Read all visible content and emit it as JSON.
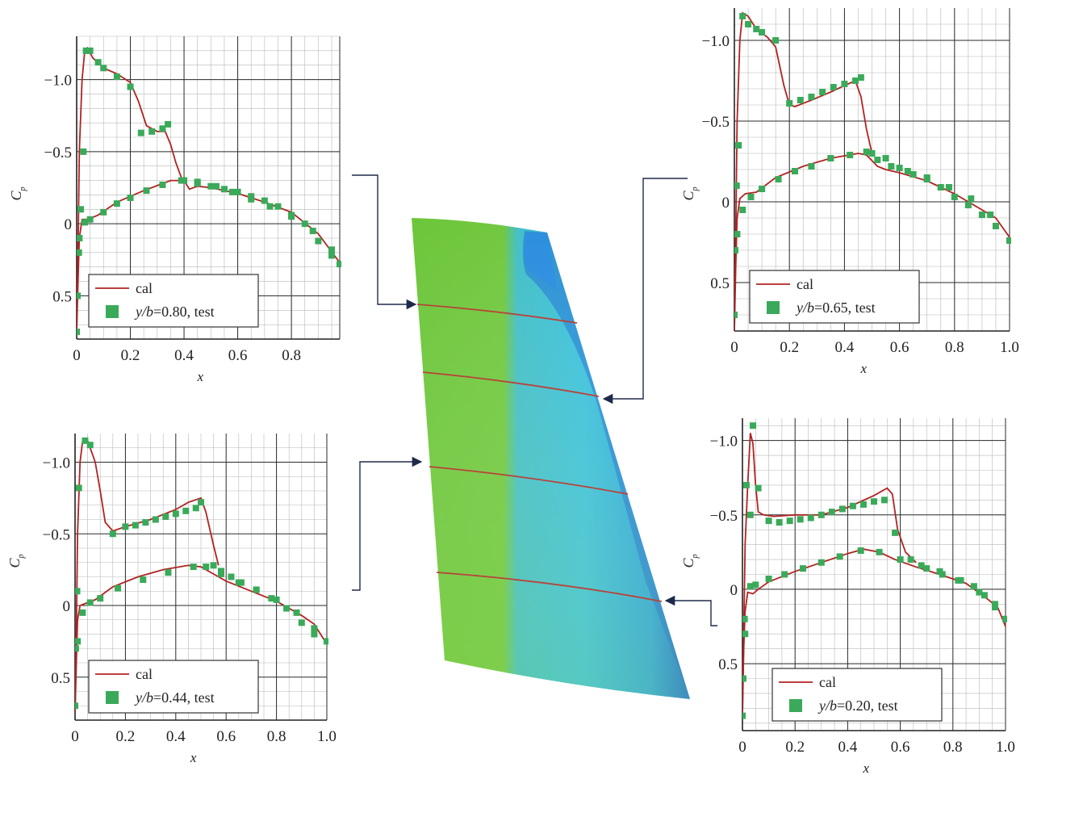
{
  "colors": {
    "cal": "#b22222",
    "test": "#3aaa5a",
    "wing_green": "#6cc63a",
    "wing_cyan": "#3dc3dc",
    "wing_blue": "#1f6fd6"
  },
  "chart_data": [
    {
      "type": "line",
      "xlabel": "x",
      "ylabel": "C_p",
      "ylabel_main": "C",
      "ylabel_sub": "p",
      "xlim": [
        0,
        0.98
      ],
      "ylim": [
        -1.3,
        0.8
      ],
      "y_inverted": true,
      "xticks": [
        0,
        0.2,
        0.4,
        0.6,
        0.8
      ],
      "xtick_labels": [
        "0",
        "0.2",
        "0.4",
        "0.6",
        "0.8"
      ],
      "yticks": [
        -1.0,
        -0.5,
        0,
        0.5
      ],
      "ytick_labels": [
        "−1.0",
        "−0.5",
        "0",
        "0.5"
      ],
      "legend": {
        "cal": "cal",
        "test_italic": "y/b",
        "test_rest": "=0.80, test"
      },
      "legend_position": "bottom-left",
      "series": [
        {
          "name": "cal",
          "kind": "line",
          "x": [
            0,
            0.005,
            0.01,
            0.02,
            0.03,
            0.04,
            0.06,
            0.1,
            0.15,
            0.2,
            0.23,
            0.26,
            0.3,
            0.33,
            0.35,
            0.37,
            0.39,
            0.41
          ],
          "y": [
            0.75,
            0.2,
            -0.5,
            -1.0,
            -1.2,
            -1.22,
            -1.15,
            -1.08,
            -1.04,
            -0.98,
            -0.85,
            -0.68,
            -0.64,
            -0.64,
            -0.55,
            -0.42,
            -0.32,
            -0.29
          ]
        },
        {
          "name": "cal",
          "kind": "line",
          "x": [
            0,
            0.005,
            0.01,
            0.02,
            0.04,
            0.08,
            0.15,
            0.25,
            0.35,
            0.4,
            0.42,
            0.45,
            0.5,
            0.6,
            0.7,
            0.8,
            0.9,
            0.98
          ],
          "y": [
            0.75,
            0.4,
            0.1,
            -0.03,
            -0.03,
            -0.06,
            -0.15,
            -0.23,
            -0.3,
            -0.3,
            -0.24,
            -0.26,
            -0.25,
            -0.21,
            -0.15,
            -0.08,
            0.07,
            0.27
          ]
        },
        {
          "name": "y/b=0.80, test",
          "kind": "points",
          "x": [
            0,
            0.003,
            0.008,
            0.015,
            0.025,
            0.035,
            0.05,
            0.08,
            0.1,
            0.15,
            0.2,
            0.24,
            0.28,
            0.32,
            0.34,
            0.4,
            0.45,
            0.5,
            0.55,
            0.6,
            0.65,
            0.7,
            0.75,
            0.8,
            0.85,
            0.9,
            0.95,
            0.98
          ],
          "y": [
            0.75,
            0.5,
            0.2,
            -0.1,
            -0.5,
            -1.2,
            -1.2,
            -1.12,
            -1.08,
            -1.02,
            -0.95,
            -0.63,
            -0.64,
            -0.66,
            -0.69,
            -0.3,
            -0.28,
            -0.26,
            -0.24,
            -0.22,
            -0.19,
            -0.16,
            -0.12,
            -0.06,
            0.0,
            0.12,
            0.22,
            0.28
          ]
        },
        {
          "name": "y/b=0.80, test",
          "kind": "points",
          "x": [
            0.01,
            0.03,
            0.05,
            0.1,
            0.15,
            0.2,
            0.26,
            0.32,
            0.39,
            0.45,
            0.52,
            0.58,
            0.65,
            0.72,
            0.8,
            0.88,
            0.95
          ],
          "y": [
            0.1,
            -0.01,
            -0.03,
            -0.08,
            -0.14,
            -0.18,
            -0.23,
            -0.27,
            -0.3,
            -0.29,
            -0.26,
            -0.22,
            -0.17,
            -0.12,
            -0.05,
            0.05,
            0.18
          ]
        }
      ]
    },
    {
      "type": "line",
      "xlabel": "x",
      "ylabel": "C_p",
      "ylabel_main": "C",
      "ylabel_sub": "p",
      "xlim": [
        0,
        1.0
      ],
      "ylim": [
        -1.2,
        0.8
      ],
      "y_inverted": true,
      "xticks": [
        0,
        0.2,
        0.4,
        0.6,
        0.8,
        1.0
      ],
      "xtick_labels": [
        "0",
        "0.2",
        "0.4",
        "0.6",
        "0.8",
        "1.0"
      ],
      "yticks": [
        -1.0,
        -0.5,
        0,
        0.5
      ],
      "ytick_labels": [
        "−1.0",
        "−0.5",
        "0",
        "0.5"
      ],
      "legend": {
        "cal": "cal",
        "test_italic": "y/b",
        "test_rest": "=0.65, test"
      },
      "legend_position": "bottom-left",
      "series": [
        {
          "name": "cal",
          "kind": "line",
          "x": [
            0,
            0.005,
            0.01,
            0.02,
            0.03,
            0.05,
            0.08,
            0.12,
            0.15,
            0.18,
            0.2,
            0.22,
            0.28,
            0.35,
            0.4,
            0.44,
            0.46,
            0.48,
            0.5
          ],
          "y": [
            0.8,
            0.2,
            -0.5,
            -1.0,
            -1.17,
            -1.15,
            -1.07,
            -1.02,
            -0.96,
            -0.72,
            -0.6,
            -0.59,
            -0.63,
            -0.68,
            -0.72,
            -0.75,
            -0.65,
            -0.45,
            -0.3
          ]
        },
        {
          "name": "cal",
          "kind": "line",
          "x": [
            0,
            0.005,
            0.01,
            0.02,
            0.04,
            0.08,
            0.15,
            0.25,
            0.35,
            0.45,
            0.48,
            0.52,
            0.55,
            0.6,
            0.7,
            0.8,
            0.9,
            0.95,
            1.0
          ],
          "y": [
            0.8,
            0.4,
            0.1,
            -0.02,
            -0.05,
            -0.06,
            -0.15,
            -0.22,
            -0.27,
            -0.3,
            -0.29,
            -0.22,
            -0.2,
            -0.18,
            -0.13,
            -0.05,
            0.05,
            0.1,
            0.22
          ]
        },
        {
          "name": "y/b=0.65, test",
          "kind": "points",
          "x": [
            0,
            0.003,
            0.008,
            0.015,
            0.03,
            0.05,
            0.08,
            0.1,
            0.15,
            0.2,
            0.24,
            0.28,
            0.32,
            0.36,
            0.4,
            0.44,
            0.46,
            0.5,
            0.55,
            0.6,
            0.65,
            0.7,
            0.75,
            0.8,
            0.85,
            0.9,
            0.95,
            1.0
          ],
          "y": [
            0.7,
            0.3,
            -0.1,
            -0.35,
            -1.15,
            -1.1,
            -1.07,
            -1.05,
            -1.0,
            -0.61,
            -0.63,
            -0.65,
            -0.68,
            -0.71,
            -0.73,
            -0.75,
            -0.77,
            -0.3,
            -0.27,
            -0.21,
            -0.17,
            -0.14,
            -0.09,
            -0.03,
            0.02,
            0.08,
            0.15,
            0.24
          ]
        },
        {
          "name": "y/b=0.65, test",
          "kind": "points",
          "x": [
            0.01,
            0.03,
            0.06,
            0.1,
            0.16,
            0.22,
            0.28,
            0.35,
            0.42,
            0.48,
            0.52,
            0.57,
            0.63,
            0.7,
            0.78,
            0.86,
            0.93
          ],
          "y": [
            0.2,
            0.05,
            -0.03,
            -0.08,
            -0.14,
            -0.19,
            -0.22,
            -0.27,
            -0.29,
            -0.31,
            -0.26,
            -0.22,
            -0.19,
            -0.15,
            -0.09,
            -0.02,
            0.08
          ]
        }
      ]
    },
    {
      "type": "line",
      "xlabel": "x",
      "ylabel": "C_p",
      "ylabel_main": "C",
      "ylabel_sub": "p",
      "xlim": [
        0,
        1.0
      ],
      "ylim": [
        -1.2,
        0.8
      ],
      "y_inverted": true,
      "xticks": [
        0,
        0.2,
        0.4,
        0.6,
        0.8,
        1.0
      ],
      "xtick_labels": [
        "0",
        "0.2",
        "0.4",
        "0.6",
        "0.8",
        "1.0"
      ],
      "yticks": [
        -1.0,
        -0.5,
        0,
        0.5
      ],
      "ytick_labels": [
        "−1.0",
        "−0.5",
        "0",
        "0.5"
      ],
      "legend": {
        "cal": "cal",
        "test_italic": "y/b",
        "test_rest": "=0.44, test"
      },
      "legend_position": "bottom-left",
      "series": [
        {
          "name": "cal",
          "kind": "line",
          "x": [
            0,
            0.005,
            0.01,
            0.02,
            0.03,
            0.05,
            0.08,
            0.1,
            0.12,
            0.15,
            0.2,
            0.3,
            0.4,
            0.45,
            0.5,
            0.52,
            0.55,
            0.57
          ],
          "y": [
            0.75,
            0.2,
            -0.5,
            -1.0,
            -1.15,
            -1.15,
            -1.0,
            -0.8,
            -0.58,
            -0.52,
            -0.55,
            -0.6,
            -0.67,
            -0.72,
            -0.75,
            -0.65,
            -0.42,
            -0.28
          ]
        },
        {
          "name": "cal",
          "kind": "line",
          "x": [
            0,
            0.005,
            0.01,
            0.02,
            0.05,
            0.08,
            0.15,
            0.25,
            0.35,
            0.45,
            0.5,
            0.55,
            0.6,
            0.7,
            0.8,
            0.9,
            0.95,
            1.0
          ],
          "y": [
            0.75,
            0.4,
            0.1,
            0.0,
            -0.02,
            -0.04,
            -0.13,
            -0.2,
            -0.25,
            -0.28,
            -0.27,
            -0.22,
            -0.17,
            -0.1,
            -0.03,
            0.07,
            0.13,
            0.27
          ]
        },
        {
          "name": "y/b=0.44, test",
          "kind": "points",
          "x": [
            0,
            0.003,
            0.008,
            0.015,
            0.04,
            0.06,
            0.15,
            0.2,
            0.24,
            0.28,
            0.32,
            0.36,
            0.4,
            0.44,
            0.48,
            0.5,
            0.55,
            0.58,
            0.62,
            0.66,
            0.72,
            0.78,
            0.84,
            0.9,
            0.95,
            1.0
          ],
          "y": [
            0.7,
            0.3,
            -0.1,
            -0.82,
            -1.15,
            -1.12,
            -0.5,
            -0.55,
            -0.56,
            -0.58,
            -0.6,
            -0.62,
            -0.64,
            -0.66,
            -0.68,
            -0.72,
            -0.28,
            -0.24,
            -0.2,
            -0.16,
            -0.11,
            -0.05,
            0.02,
            0.12,
            0.2,
            0.25
          ]
        },
        {
          "name": "y/b=0.44, test",
          "kind": "points",
          "x": [
            0.01,
            0.03,
            0.06,
            0.1,
            0.17,
            0.27,
            0.37,
            0.47,
            0.52,
            0.58,
            0.65,
            0.72,
            0.8,
            0.88,
            0.95
          ],
          "y": [
            0.25,
            0.05,
            -0.02,
            -0.05,
            -0.12,
            -0.18,
            -0.23,
            -0.27,
            -0.27,
            -0.22,
            -0.16,
            -0.11,
            -0.04,
            0.05,
            0.16
          ]
        }
      ]
    },
    {
      "type": "line",
      "xlabel": "x",
      "ylabel": "C_p",
      "ylabel_main": "C",
      "ylabel_sub": "p",
      "xlim": [
        0,
        1.0
      ],
      "ylim": [
        -1.15,
        0.95
      ],
      "y_inverted": true,
      "xticks": [
        0,
        0.2,
        0.4,
        0.6,
        0.8,
        1.0
      ],
      "xtick_labels": [
        "0",
        "0.2",
        "0.4",
        "0.6",
        "0.8",
        "1.0"
      ],
      "yticks": [
        -1.0,
        -0.5,
        0,
        0.5
      ],
      "ytick_labels": [
        "−1.0",
        "−0.5",
        "0",
        "0.5"
      ],
      "legend": {
        "cal": "cal",
        "test_italic": "y/b",
        "test_rest": "=0.20, test"
      },
      "legend_position": "bottom-left",
      "series": [
        {
          "name": "cal",
          "kind": "line",
          "x": [
            0,
            0.005,
            0.01,
            0.02,
            0.03,
            0.04,
            0.05,
            0.06,
            0.08,
            0.12,
            0.2,
            0.3,
            0.4,
            0.5,
            0.55,
            0.57,
            0.59,
            0.62,
            0.66
          ],
          "y": [
            0.85,
            0.3,
            -0.3,
            -0.7,
            -1.05,
            -0.98,
            -0.7,
            -0.52,
            -0.5,
            -0.49,
            -0.5,
            -0.5,
            -0.55,
            -0.63,
            -0.68,
            -0.64,
            -0.4,
            -0.25,
            -0.18
          ]
        },
        {
          "name": "cal",
          "kind": "line",
          "x": [
            0,
            0.005,
            0.01,
            0.02,
            0.04,
            0.06,
            0.1,
            0.2,
            0.3,
            0.4,
            0.46,
            0.52,
            0.58,
            0.66,
            0.75,
            0.85,
            0.92,
            0.97,
            1.0
          ],
          "y": [
            0.85,
            0.4,
            0.15,
            0.02,
            0.03,
            0.0,
            -0.05,
            -0.12,
            -0.18,
            -0.24,
            -0.27,
            -0.25,
            -0.2,
            -0.15,
            -0.1,
            -0.04,
            0.05,
            0.12,
            0.25
          ]
        },
        {
          "name": "y/b=0.20, test",
          "kind": "points",
          "x": [
            0,
            0.003,
            0.008,
            0.015,
            0.03,
            0.04,
            0.06,
            0.1,
            0.14,
            0.18,
            0.22,
            0.26,
            0.3,
            0.34,
            0.38,
            0.42,
            0.46,
            0.5,
            0.54,
            0.58,
            0.64,
            0.7,
            0.76,
            0.82,
            0.88,
            0.92,
            0.96,
            1.0
          ],
          "y": [
            0.85,
            0.6,
            0.2,
            -0.7,
            -0.5,
            -1.1,
            -0.68,
            -0.46,
            -0.45,
            -0.46,
            -0.47,
            -0.48,
            -0.5,
            -0.52,
            -0.54,
            -0.56,
            -0.57,
            -0.59,
            -0.6,
            -0.38,
            -0.2,
            -0.14,
            -0.1,
            -0.06,
            -0.02,
            0.04,
            0.12,
            0.2
          ]
        },
        {
          "name": "y/b=0.20, test",
          "kind": "points",
          "x": [
            0.01,
            0.03,
            0.05,
            0.1,
            0.16,
            0.23,
            0.3,
            0.37,
            0.45,
            0.52,
            0.6,
            0.68,
            0.75,
            0.83,
            0.9,
            0.96
          ],
          "y": [
            0.3,
            -0.02,
            -0.03,
            -0.07,
            -0.1,
            -0.14,
            -0.18,
            -0.22,
            -0.26,
            -0.25,
            -0.2,
            -0.16,
            -0.12,
            -0.06,
            0.02,
            0.1
          ]
        }
      ]
    }
  ]
}
